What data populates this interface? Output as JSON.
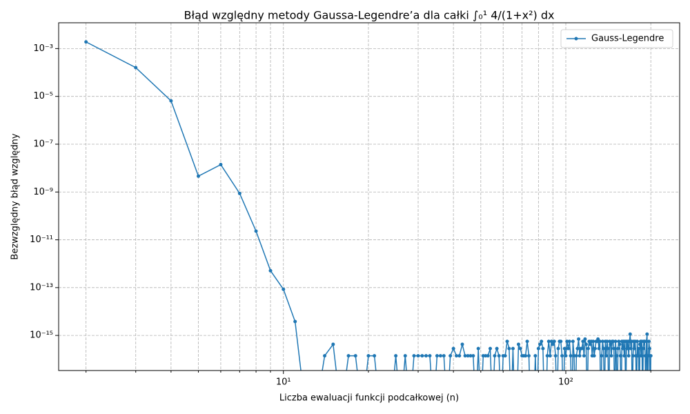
{
  "chart_data": {
    "type": "line",
    "title": "Błąd względny metody Gaussa-Legendre’a dla całki ∫₀¹ 4/(1+x²) dx",
    "xlabel": "Liczba ewaluacji funkcji podcałkowej (n)",
    "ylabel": "Bezwzględny błąd względny",
    "xscale": "log",
    "yscale": "log",
    "grid": true,
    "legend": "upper right",
    "xlim": [
      1.6,
      253
    ],
    "ylim": [
      3.4e-17,
      0.012
    ],
    "xticks": [
      {
        "value": 10,
        "label": "10¹"
      },
      {
        "value": 100,
        "label": "10²"
      }
    ],
    "xminor_ticks": [
      2,
      3,
      4,
      5,
      6,
      7,
      8,
      9,
      20,
      30,
      40,
      50,
      60,
      70,
      80,
      90,
      200
    ],
    "yticks": [
      {
        "value": 0.001,
        "label": "10⁻³"
      },
      {
        "value": 1e-05,
        "label": "10⁻⁵"
      },
      {
        "value": 1e-07,
        "label": "10⁻⁷"
      },
      {
        "value": 1e-09,
        "label": "10⁻⁹"
      },
      {
        "value": 1e-11,
        "label": "10⁻¹¹"
      },
      {
        "value": 1e-13,
        "label": "10⁻¹³"
      },
      {
        "value": 1e-15,
        "label": "10⁻¹⁵"
      }
    ],
    "x": [
      2,
      3,
      4,
      5,
      6,
      7,
      8,
      9,
      10,
      11,
      12,
      13,
      14,
      15,
      16,
      17,
      18,
      19,
      20,
      21,
      22,
      23,
      24,
      25,
      26,
      27,
      28,
      29,
      30,
      31,
      32,
      33,
      34,
      35,
      36,
      37,
      38,
      39,
      40,
      41,
      42,
      43,
      44,
      45,
      46,
      47,
      48,
      49,
      50,
      51,
      52,
      53,
      54,
      55,
      56,
      57,
      58,
      59,
      60,
      61,
      62,
      63,
      64,
      65,
      66,
      67,
      68,
      69,
      70,
      71,
      72,
      73,
      74,
      75,
      76,
      77,
      78,
      79,
      80,
      81,
      82,
      83,
      84,
      85,
      86,
      87,
      88,
      89,
      90,
      91,
      92,
      93,
      94,
      95,
      96,
      97,
      98,
      99,
      100,
      101,
      102,
      103,
      104,
      105,
      106,
      107,
      108,
      109,
      110,
      111,
      112,
      113,
      114,
      115,
      116,
      117,
      118,
      119,
      120,
      121,
      122,
      123,
      124,
      125,
      126,
      127,
      128,
      129,
      130,
      131,
      132,
      133,
      134,
      135,
      136,
      137,
      138,
      139,
      140,
      141,
      142,
      143,
      144,
      145,
      146,
      147,
      148,
      149,
      150,
      151,
      152,
      153,
      154,
      155,
      156,
      157,
      158,
      159,
      160,
      161,
      162,
      163,
      164,
      165,
      166,
      167,
      168,
      169,
      170,
      171,
      172,
      173,
      174,
      175,
      176,
      177,
      178,
      179,
      180,
      181,
      182,
      183,
      184,
      185,
      186,
      187,
      188,
      189,
      190,
      191,
      192,
      193,
      194,
      195,
      196,
      197,
      198,
      199,
      200
    ],
    "series": [
      {
        "name": "Gauss-Legendre",
        "color": "#1f77b4",
        "values": [
          0.0019,
          0.00016,
          6.5e-06,
          4.6e-09,
          1.4e-08,
          8.7e-10,
          2.3e-11,
          5.1e-13,
          8.5e-14,
          3.8e-15,
          0,
          0,
          1.41e-16,
          4.24e-16,
          0,
          1.41e-16,
          1.41e-16,
          0,
          1.41e-16,
          1.41e-16,
          0,
          0,
          0,
          1.41e-16,
          0,
          1.41e-16,
          0,
          1.41e-16,
          1.41e-16,
          1.41e-16,
          1.41e-16,
          1.41e-16,
          0,
          1.41e-16,
          1.41e-16,
          1.41e-16,
          0,
          1.41e-16,
          2.83e-16,
          1.41e-16,
          1.41e-16,
          4.24e-16,
          1.41e-16,
          1.41e-16,
          1.41e-16,
          1.41e-16,
          0,
          2.83e-16,
          0,
          1.41e-16,
          1.41e-16,
          1.41e-16,
          2.83e-16,
          0,
          1.41e-16,
          2.83e-16,
          1.41e-16,
          0,
          1.41e-16,
          1.41e-16,
          5.65e-16,
          2.83e-16,
          0,
          2.83e-16,
          0,
          0,
          4.24e-16,
          2.83e-16,
          1.41e-16,
          1.41e-16,
          1.41e-16,
          5.65e-16,
          1.41e-16,
          0,
          0,
          0,
          1.41e-16,
          0,
          2.83e-16,
          4.24e-16,
          5.65e-16,
          2.83e-16,
          0,
          0,
          1.41e-16,
          5.65e-16,
          1.41e-16,
          5.65e-16,
          4.24e-16,
          5.65e-16,
          1.41e-16,
          0,
          2.83e-16,
          5.65e-16,
          5.65e-16,
          1.41e-16,
          0,
          2.83e-16,
          1.41e-16,
          5.65e-16,
          2.83e-16,
          5.65e-16,
          1.41e-16,
          0,
          5.65e-16,
          1.41e-16,
          0,
          1.41e-16,
          2.83e-16,
          7.07e-16,
          1.41e-16,
          2.83e-16,
          2.83e-16,
          5.65e-16,
          1.41e-16,
          7.07e-16,
          4.24e-16,
          0,
          2.83e-16,
          5.65e-16,
          4.24e-16,
          5.65e-16,
          1.41e-16,
          5.65e-16,
          1.41e-16,
          2.83e-16,
          5.65e-16,
          5.65e-16,
          7.07e-16,
          2.83e-16,
          5.65e-16,
          0,
          1.41e-16,
          5.65e-16,
          2.83e-16,
          0,
          5.65e-16,
          1.41e-16,
          5.65e-16,
          2.83e-16,
          0,
          5.65e-16,
          4.24e-16,
          1.41e-16,
          5.65e-16,
          5.65e-16,
          2.83e-16,
          0,
          5.65e-16,
          1.41e-16,
          0,
          2.83e-16,
          5.65e-16,
          4.24e-16,
          1.41e-16,
          0,
          5.65e-16,
          2.83e-16,
          5.65e-16,
          1.41e-16,
          5.65e-16,
          0,
          5.65e-16,
          2.83e-16,
          5.65e-16,
          1.41e-16,
          5.65e-16,
          1.13e-15,
          2.83e-16,
          5.65e-16,
          0,
          1.41e-16,
          5.65e-16,
          2.83e-16,
          5.65e-16,
          1.41e-16,
          0,
          5.65e-16,
          1.41e-16,
          2.83e-16,
          0,
          4.24e-16,
          5.65e-16,
          1.41e-16,
          5.65e-16,
          0,
          2.83e-16,
          5.65e-16,
          5.65e-16,
          1.41e-16,
          0,
          5.65e-16,
          1.13e-15,
          0,
          1.41e-16,
          5.65e-16,
          2.83e-16,
          0,
          1.41e-16
        ]
      }
    ]
  }
}
